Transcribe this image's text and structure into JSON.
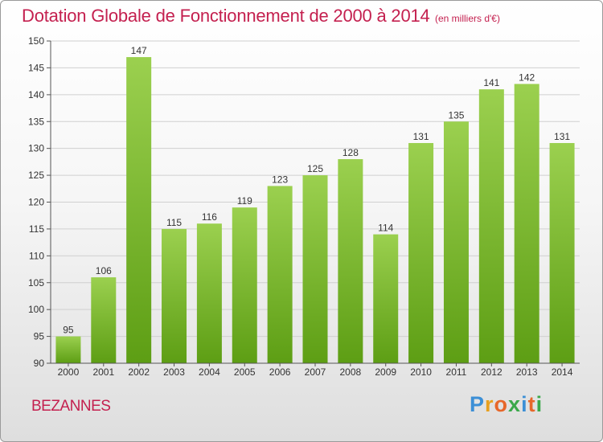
{
  "title": "Dotation Globale de Fonctionnement de 2000 à 2014",
  "subtitle": "(en milliers d'€)",
  "commune": "BEZANNES",
  "logo": {
    "p": "P",
    "r": "r",
    "o": "o",
    "x": "x",
    "i": "i",
    "t": "t",
    "i2": "i"
  },
  "colors": {
    "bar_top": "#9bd04f",
    "bar_bottom": "#5d9e14",
    "title": "#c4204f",
    "grid": "#d0d0d0"
  },
  "chart_data": {
    "type": "bar",
    "title": "Dotation Globale de Fonctionnement de 2000 à 2014",
    "subtitle": "(en milliers d'€)",
    "categories": [
      "2000",
      "2001",
      "2002",
      "2003",
      "2004",
      "2005",
      "2006",
      "2007",
      "2008",
      "2009",
      "2010",
      "2011",
      "2012",
      "2013",
      "2014"
    ],
    "values": [
      95,
      106,
      147,
      115,
      116,
      119,
      123,
      125,
      128,
      114,
      131,
      135,
      141,
      142,
      131
    ],
    "ylim": [
      90,
      150
    ],
    "yticks": [
      90,
      95,
      100,
      105,
      110,
      115,
      120,
      125,
      130,
      135,
      140,
      145,
      150
    ],
    "grid": true,
    "data_labels": true
  }
}
